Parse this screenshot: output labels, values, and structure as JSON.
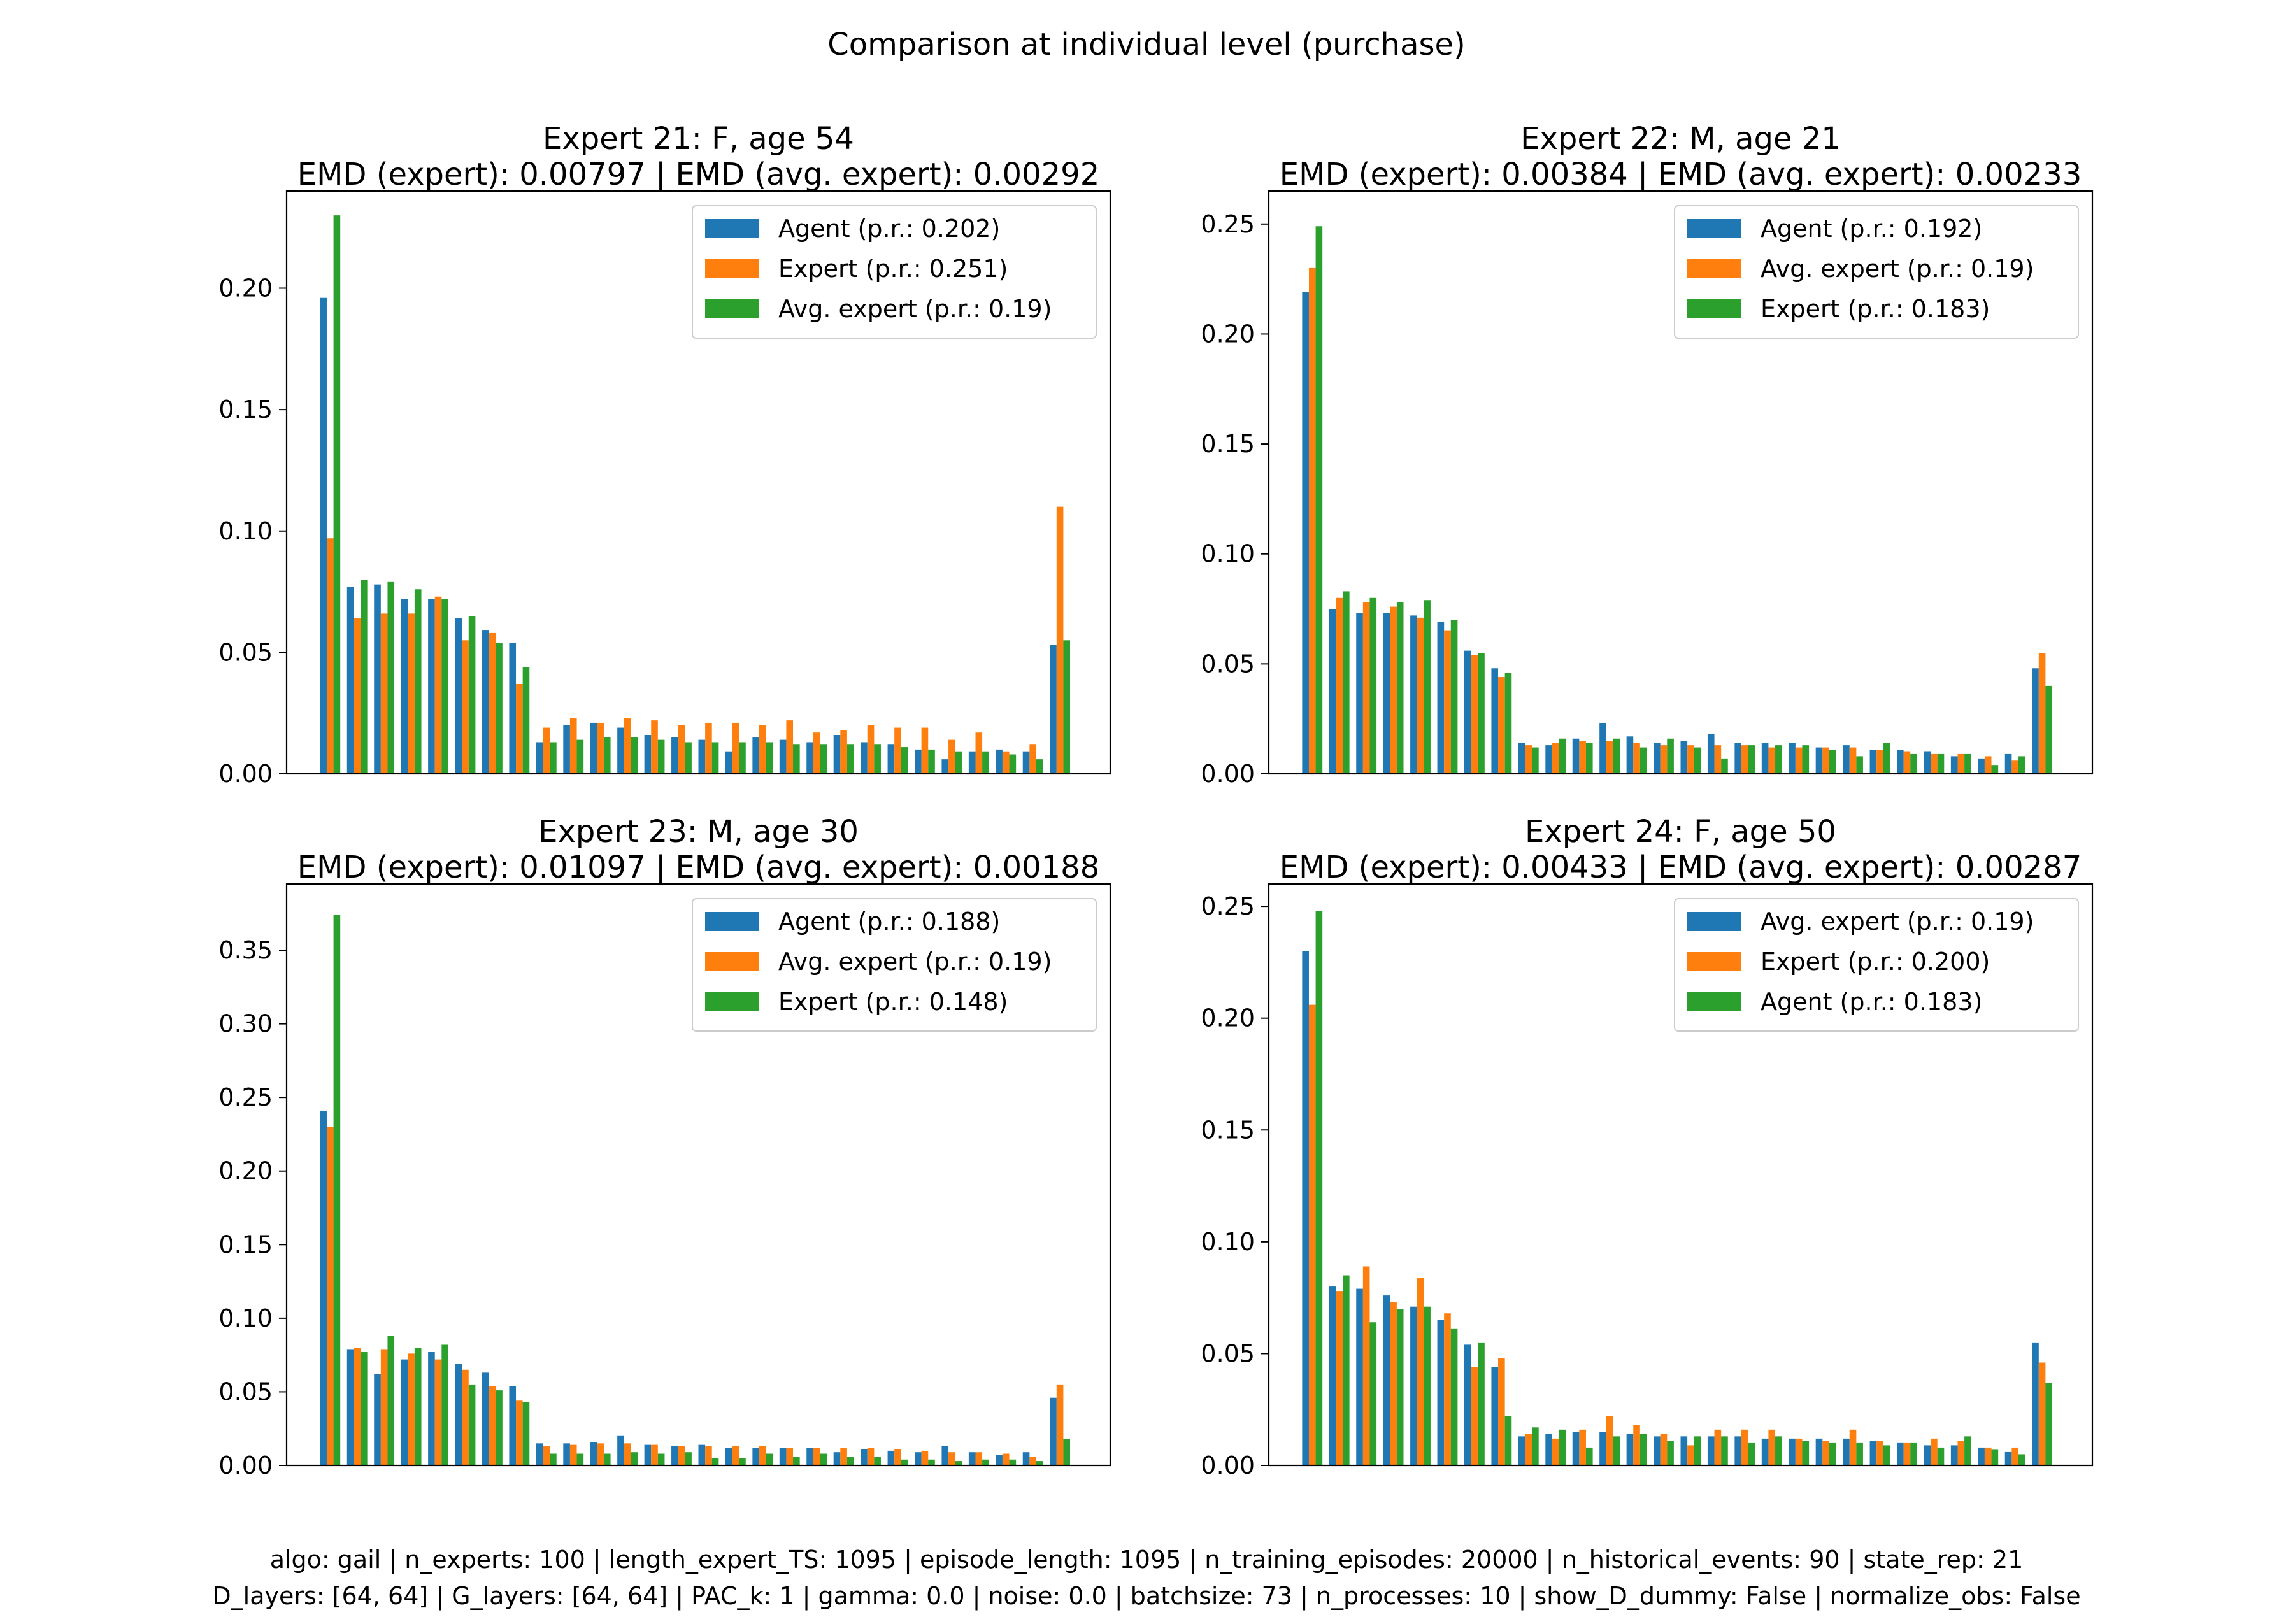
{
  "suptitle": "Comparison at individual level (purchase)",
  "footer": [
    "algo: gail | n_experts: 100 | length_expert_TS: 1095 | episode_length: 1095 | n_training_episodes: 20000 | n_historical_events: 90 | state_rep: 21",
    "D_layers: [64, 64] | G_layers: [64, 64] | PAC_k: 1 | gamma: 0.0 | noise: 0.0 | batchsize: 73 | n_processes: 10 | show_D_dummy: False | normalize_obs: False"
  ],
  "colors": {
    "blue": "#1f77b4",
    "orange": "#ff7f0e",
    "green": "#2ca02c"
  },
  "chart_data": [
    {
      "type": "bar",
      "title": "Expert 21: F, age 54",
      "subtitle": "EMD (expert): 0.00797 | EMD (avg. expert): 0.00292",
      "ylim": [
        0,
        0.24
      ],
      "yticks": [
        "0.00",
        "0.05",
        "0.10",
        "0.15",
        "0.20"
      ],
      "ytick_values": [
        0,
        0.05,
        0.1,
        0.15,
        0.2
      ],
      "legend_position": "top-right",
      "series": [
        {
          "name": "Agent (p.r.: 0.202)",
          "color": "#1f77b4",
          "values": [
            0.196,
            0.077,
            0.078,
            0.072,
            0.072,
            0.064,
            0.059,
            0.054,
            0.013,
            0.02,
            0.021,
            0.019,
            0.016,
            0.015,
            0.014,
            0.009,
            0.015,
            0.014,
            0.013,
            0.016,
            0.013,
            0.012,
            0.01,
            0.006,
            0.009,
            0.01,
            0.009,
            0.053
          ]
        },
        {
          "name": "Expert (p.r.: 0.251)",
          "color": "#ff7f0e",
          "values": [
            0.097,
            0.064,
            0.066,
            0.066,
            0.073,
            0.055,
            0.058,
            0.037,
            0.019,
            0.023,
            0.021,
            0.023,
            0.022,
            0.02,
            0.021,
            0.021,
            0.02,
            0.022,
            0.017,
            0.018,
            0.02,
            0.019,
            0.019,
            0.014,
            0.017,
            0.009,
            0.012,
            0.11
          ]
        },
        {
          "name": "Avg. expert (p.r.: 0.19)",
          "color": "#2ca02c",
          "values": [
            0.23,
            0.08,
            0.079,
            0.076,
            0.072,
            0.065,
            0.054,
            0.044,
            0.013,
            0.014,
            0.015,
            0.015,
            0.014,
            0.013,
            0.013,
            0.013,
            0.013,
            0.012,
            0.012,
            0.012,
            0.012,
            0.011,
            0.01,
            0.009,
            0.009,
            0.008,
            0.006,
            0.055
          ]
        }
      ]
    },
    {
      "type": "bar",
      "title": "Expert 22: M, age 21",
      "subtitle": "EMD (expert): 0.00384 | EMD (avg. expert): 0.00233",
      "ylim": [
        0,
        0.265
      ],
      "yticks": [
        "0.00",
        "0.05",
        "0.10",
        "0.15",
        "0.20",
        "0.25"
      ],
      "ytick_values": [
        0,
        0.05,
        0.1,
        0.15,
        0.2,
        0.25
      ],
      "legend_position": "top-right",
      "series": [
        {
          "name": "Agent (p.r.: 0.192)",
          "color": "#1f77b4",
          "values": [
            0.219,
            0.075,
            0.073,
            0.073,
            0.072,
            0.069,
            0.056,
            0.048,
            0.014,
            0.013,
            0.016,
            0.023,
            0.017,
            0.014,
            0.015,
            0.018,
            0.014,
            0.014,
            0.014,
            0.012,
            0.013,
            0.011,
            0.011,
            0.01,
            0.008,
            0.007,
            0.009,
            0.048
          ]
        },
        {
          "name": "Avg. expert (p.r.: 0.19)",
          "color": "#ff7f0e",
          "values": [
            0.23,
            0.08,
            0.078,
            0.076,
            0.071,
            0.065,
            0.054,
            0.044,
            0.013,
            0.014,
            0.015,
            0.015,
            0.014,
            0.013,
            0.013,
            0.013,
            0.013,
            0.012,
            0.012,
            0.012,
            0.012,
            0.011,
            0.01,
            0.009,
            0.009,
            0.008,
            0.006,
            0.055
          ]
        },
        {
          "name": "Expert (p.r.: 0.183)",
          "color": "#2ca02c",
          "values": [
            0.249,
            0.083,
            0.08,
            0.078,
            0.079,
            0.07,
            0.055,
            0.046,
            0.012,
            0.016,
            0.014,
            0.016,
            0.012,
            0.016,
            0.012,
            0.007,
            0.013,
            0.013,
            0.013,
            0.011,
            0.008,
            0.014,
            0.009,
            0.009,
            0.009,
            0.004,
            0.008,
            0.04
          ]
        }
      ]
    },
    {
      "type": "bar",
      "title": "Expert 23: M, age 30",
      "subtitle": "EMD (expert): 0.01097 | EMD (avg. expert): 0.00188",
      "ylim": [
        0,
        0.395
      ],
      "yticks": [
        "0.00",
        "0.05",
        "0.10",
        "0.15",
        "0.20",
        "0.25",
        "0.30",
        "0.35"
      ],
      "ytick_values": [
        0,
        0.05,
        0.1,
        0.15,
        0.2,
        0.25,
        0.3,
        0.35
      ],
      "legend_position": "top-right",
      "series": [
        {
          "name": "Agent (p.r.: 0.188)",
          "color": "#1f77b4",
          "values": [
            0.241,
            0.079,
            0.062,
            0.072,
            0.077,
            0.069,
            0.063,
            0.054,
            0.015,
            0.015,
            0.016,
            0.02,
            0.014,
            0.013,
            0.014,
            0.012,
            0.012,
            0.012,
            0.012,
            0.009,
            0.011,
            0.01,
            0.009,
            0.013,
            0.009,
            0.007,
            0.009,
            0.046
          ]
        },
        {
          "name": "Avg. expert (p.r.: 0.19)",
          "color": "#ff7f0e",
          "values": [
            0.23,
            0.08,
            0.079,
            0.076,
            0.072,
            0.065,
            0.054,
            0.044,
            0.013,
            0.014,
            0.015,
            0.015,
            0.014,
            0.013,
            0.013,
            0.013,
            0.013,
            0.012,
            0.012,
            0.012,
            0.012,
            0.011,
            0.01,
            0.009,
            0.009,
            0.008,
            0.006,
            0.055
          ]
        },
        {
          "name": "Expert (p.r.: 0.148)",
          "color": "#2ca02c",
          "values": [
            0.374,
            0.077,
            0.088,
            0.08,
            0.082,
            0.055,
            0.051,
            0.043,
            0.008,
            0.008,
            0.008,
            0.009,
            0.008,
            0.009,
            0.005,
            0.005,
            0.008,
            0.006,
            0.008,
            0.006,
            0.006,
            0.004,
            0.004,
            0.003,
            0.004,
            0.004,
            0.003,
            0.018
          ]
        }
      ]
    },
    {
      "type": "bar",
      "title": "Expert 24: F, age 50",
      "subtitle": "EMD (expert): 0.00433 | EMD (avg. expert): 0.00287",
      "ylim": [
        0,
        0.26
      ],
      "yticks": [
        "0.00",
        "0.05",
        "0.10",
        "0.15",
        "0.20",
        "0.25"
      ],
      "ytick_values": [
        0,
        0.05,
        0.1,
        0.15,
        0.2,
        0.25
      ],
      "legend_position": "top-right",
      "series": [
        {
          "name": "Avg. expert (p.r.: 0.19)",
          "color": "#1f77b4",
          "values": [
            0.23,
            0.08,
            0.079,
            0.076,
            0.071,
            0.065,
            0.054,
            0.044,
            0.013,
            0.014,
            0.015,
            0.015,
            0.014,
            0.013,
            0.013,
            0.013,
            0.013,
            0.012,
            0.012,
            0.012,
            0.012,
            0.011,
            0.01,
            0.009,
            0.009,
            0.008,
            0.006,
            0.055
          ]
        },
        {
          "name": "Expert (p.r.: 0.200)",
          "color": "#ff7f0e",
          "values": [
            0.206,
            0.078,
            0.089,
            0.073,
            0.084,
            0.068,
            0.044,
            0.048,
            0.014,
            0.012,
            0.016,
            0.022,
            0.018,
            0.014,
            0.009,
            0.016,
            0.016,
            0.016,
            0.012,
            0.011,
            0.016,
            0.011,
            0.01,
            0.012,
            0.011,
            0.008,
            0.008,
            0.046
          ]
        },
        {
          "name": "Agent (p.r.: 0.183)",
          "color": "#2ca02c",
          "values": [
            0.248,
            0.085,
            0.064,
            0.07,
            0.071,
            0.061,
            0.055,
            0.022,
            0.017,
            0.016,
            0.008,
            0.013,
            0.014,
            0.011,
            0.013,
            0.013,
            0.01,
            0.013,
            0.011,
            0.01,
            0.01,
            0.009,
            0.01,
            0.008,
            0.013,
            0.007,
            0.005,
            0.037
          ]
        }
      ]
    }
  ]
}
